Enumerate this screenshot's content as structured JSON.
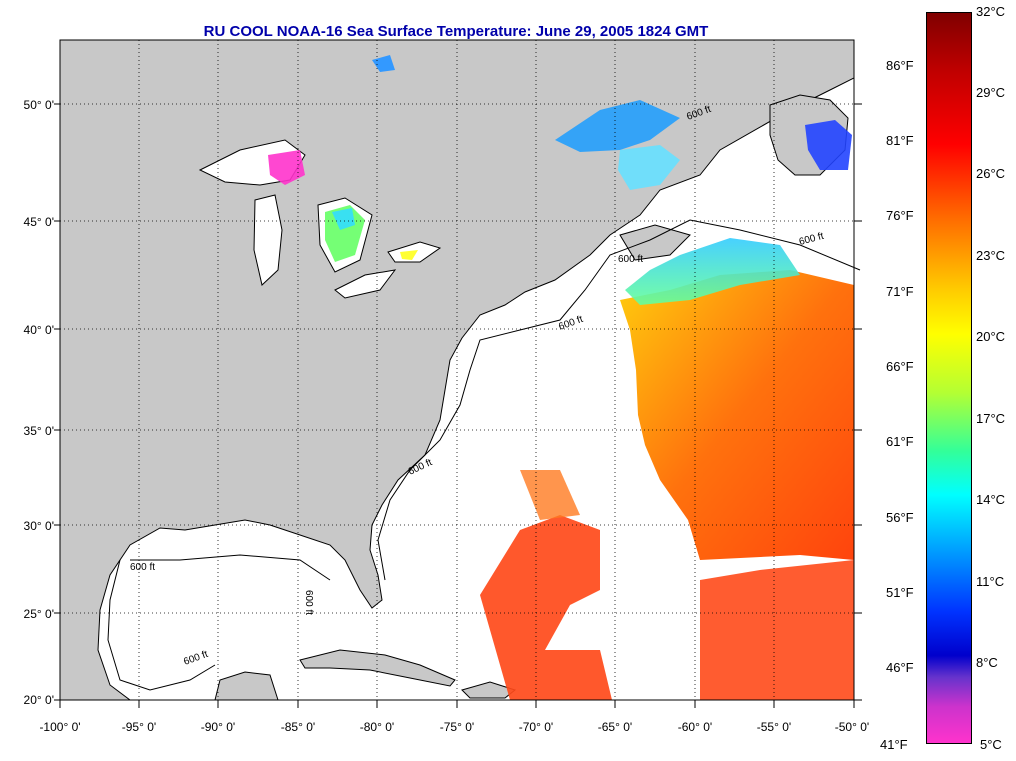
{
  "title": "RU COOL  NOAA-16  Sea Surface Temperature:  June 29, 2005 1824 GMT",
  "map": {
    "lon_range": [
      -100,
      -50
    ],
    "lat_range": [
      20,
      52.5
    ],
    "grid": true,
    "land_color": "#c8c8c8",
    "ocean_color": "#ffffff",
    "x_ticks": [
      "-100° 0'",
      "-95° 0'",
      "-90° 0'",
      "-85° 0'",
      "-80° 0'",
      "-75° 0'",
      "-70° 0'",
      "-65° 0'",
      "-60° 0'",
      "-55° 0'",
      "-50° 0'"
    ],
    "y_ticks": [
      "50° 0'",
      "45° 0'",
      "40° 0'",
      "35° 0'",
      "30° 0'",
      "25° 0'",
      "20° 0'"
    ],
    "contour_labels": [
      "600 ft",
      "600 ft",
      "600 ft",
      "600 ft",
      "600 ft",
      "600 ft",
      "600 ft",
      "600 ft"
    ]
  },
  "colorbar": {
    "celsius": [
      "32°C",
      "29°C",
      "26°C",
      "23°C",
      "20°C",
      "17°C",
      "14°C",
      "11°C",
      "8°C",
      "5°C"
    ],
    "fahrenheit": [
      "86°F",
      "81°F",
      "76°F",
      "71°F",
      "66°F",
      "61°F",
      "56°F",
      "51°F",
      "46°F",
      "41°F"
    ],
    "range_c": [
      5,
      32
    ]
  }
}
